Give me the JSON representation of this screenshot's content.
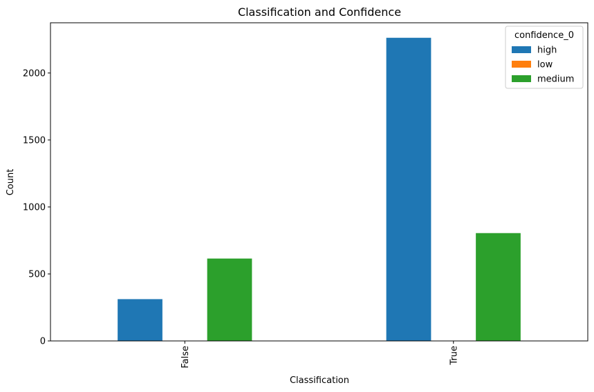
{
  "chart_data": {
    "type": "bar",
    "title": "Classification and Confidence",
    "xlabel": "Classification",
    "ylabel": "Count",
    "categories": [
      "False",
      "True"
    ],
    "series": [
      {
        "name": "high",
        "values": [
          312,
          2263
        ],
        "color": "#1f77b4"
      },
      {
        "name": "low",
        "values": [
          0,
          0
        ],
        "color": "#ff7f0e"
      },
      {
        "name": "medium",
        "values": [
          615,
          805
        ],
        "color": "#2ca02c"
      }
    ],
    "ylim": [
      0,
      2375
    ],
    "yticks": [
      0,
      500,
      1000,
      1500,
      2000
    ],
    "grid": false,
    "legend": {
      "title": "confidence_0",
      "placement": "top-right"
    }
  }
}
